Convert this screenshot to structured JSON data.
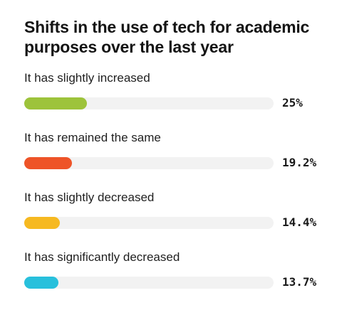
{
  "chart_data": {
    "type": "bar",
    "orientation": "horizontal",
    "title": "Shifts in the use of tech for academic purposes over the last year",
    "categories": [
      "It has slightly increased",
      "It has remained the same",
      "It has slightly decreased",
      "It has significantly decreased"
    ],
    "values": [
      25,
      19.2,
      14.4,
      13.7
    ],
    "value_labels": [
      "25%",
      "19.2%",
      "14.4%",
      "13.7%"
    ],
    "colors": [
      "#9dc33b",
      "#ee5428",
      "#f6b921",
      "#28c0dc"
    ],
    "track_color": "#f2f2f2",
    "xlim": [
      0,
      100
    ],
    "grid": false,
    "legend": "none"
  }
}
